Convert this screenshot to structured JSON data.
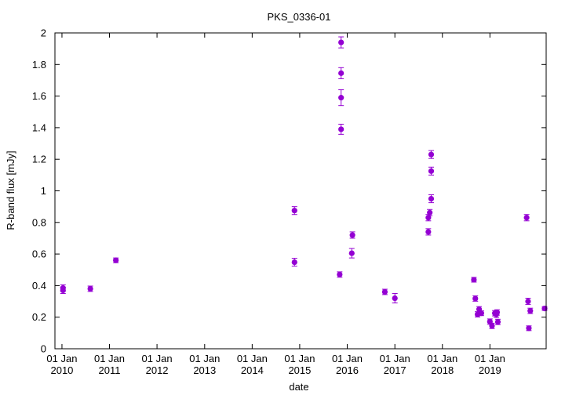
{
  "chart_data": {
    "type": "scatter",
    "title": "PKS_0336-01",
    "xlabel": "date",
    "ylabel": "R-band flux [mJy]",
    "x_is_date": true,
    "xlim": [
      "2009-11-08",
      "2020-03-08"
    ],
    "ylim": [
      0,
      2
    ],
    "xticks": [
      {
        "date": "2010-01-01",
        "label": [
          "01 Jan",
          "2010"
        ]
      },
      {
        "date": "2011-01-01",
        "label": [
          "01 Jan",
          "2011"
        ]
      },
      {
        "date": "2012-01-01",
        "label": [
          "01 Jan",
          "2012"
        ]
      },
      {
        "date": "2013-01-01",
        "label": [
          "01 Jan",
          "2013"
        ]
      },
      {
        "date": "2014-01-01",
        "label": [
          "01 Jan",
          "2014"
        ]
      },
      {
        "date": "2015-01-01",
        "label": [
          "01 Jan",
          "2015"
        ]
      },
      {
        "date": "2016-01-01",
        "label": [
          "01 Jan",
          "2016"
        ]
      },
      {
        "date": "2017-01-01",
        "label": [
          "01 Jan",
          "2017"
        ]
      },
      {
        "date": "2018-01-01",
        "label": [
          "01 Jan",
          "2018"
        ]
      },
      {
        "date": "2019-01-01",
        "label": [
          "01 Jan",
          "2019"
        ]
      }
    ],
    "yticks": [
      0,
      0.2,
      0.4,
      0.6,
      0.8,
      1,
      1.2,
      1.4,
      1.6,
      1.8,
      2
    ],
    "ytick_labels": [
      "0",
      "0.2",
      "0.4",
      "0.6",
      "0.8",
      "1",
      "1.2",
      "1.4",
      "1.6",
      "1.8",
      "2"
    ],
    "grid": false,
    "marker_color": "#9400d3",
    "series": [
      {
        "points": [
          {
            "x": "2010-01-09",
            "y": 0.37,
            "err": 0.02
          },
          {
            "x": "2010-01-09",
            "y": 0.385,
            "err": 0.02
          },
          {
            "x": "2010-08-07",
            "y": 0.38,
            "err": 0.017
          },
          {
            "x": "2011-02-19",
            "y": 0.56,
            "err": 0.015
          },
          {
            "x": "2014-11-22",
            "y": 0.875,
            "err": 0.025
          },
          {
            "x": "2014-11-22",
            "y": 0.548,
            "err": 0.025
          },
          {
            "x": "2015-11-04",
            "y": 0.47,
            "err": 0.017
          },
          {
            "x": "2015-11-15",
            "y": 1.94,
            "err": 0.035
          },
          {
            "x": "2015-11-15",
            "y": 1.745,
            "err": 0.035
          },
          {
            "x": "2015-11-15",
            "y": 1.59,
            "err": 0.05
          },
          {
            "x": "2015-11-15",
            "y": 1.39,
            "err": 0.032
          },
          {
            "x": "2016-02-05",
            "y": 0.605,
            "err": 0.03
          },
          {
            "x": "2016-02-10",
            "y": 0.72,
            "err": 0.02
          },
          {
            "x": "2016-10-16",
            "y": 0.36,
            "err": 0.017
          },
          {
            "x": "2017-01-01",
            "y": 0.32,
            "err": 0.03
          },
          {
            "x": "2017-09-15",
            "y": 0.74,
            "err": 0.02
          },
          {
            "x": "2017-09-15",
            "y": 0.83,
            "err": 0.02
          },
          {
            "x": "2017-09-26",
            "y": 0.862,
            "err": 0.02
          },
          {
            "x": "2017-10-07",
            "y": 0.95,
            "err": 0.025
          },
          {
            "x": "2017-10-07",
            "y": 1.125,
            "err": 0.025
          },
          {
            "x": "2017-10-07",
            "y": 1.23,
            "err": 0.025
          },
          {
            "x": "2018-08-31",
            "y": 0.437,
            "err": 0.015
          },
          {
            "x": "2018-09-11",
            "y": 0.318,
            "err": 0.017
          },
          {
            "x": "2018-09-28",
            "y": 0.218,
            "err": 0.017
          },
          {
            "x": "2018-10-10",
            "y": 0.25,
            "err": 0.017
          },
          {
            "x": "2018-10-27",
            "y": 0.225,
            "err": 0.015
          },
          {
            "x": "2019-01-01",
            "y": 0.172,
            "err": 0.017
          },
          {
            "x": "2019-01-17",
            "y": 0.145,
            "err": 0.017
          },
          {
            "x": "2019-02-08",
            "y": 0.225,
            "err": 0.017
          },
          {
            "x": "2019-02-19",
            "y": 0.218,
            "err": 0.02
          },
          {
            "x": "2019-02-25",
            "y": 0.23,
            "err": 0.017
          },
          {
            "x": "2019-03-03",
            "y": 0.17,
            "err": 0.017
          },
          {
            "x": "2019-10-10",
            "y": 0.83,
            "err": 0.02
          },
          {
            "x": "2019-10-21",
            "y": 0.3,
            "err": 0.02
          },
          {
            "x": "2019-10-27",
            "y": 0.13,
            "err": 0.015
          },
          {
            "x": "2019-11-07",
            "y": 0.24,
            "err": 0.017
          },
          {
            "x": "2020-02-25",
            "y": 0.255,
            "err": 0.012
          }
        ]
      }
    ]
  }
}
